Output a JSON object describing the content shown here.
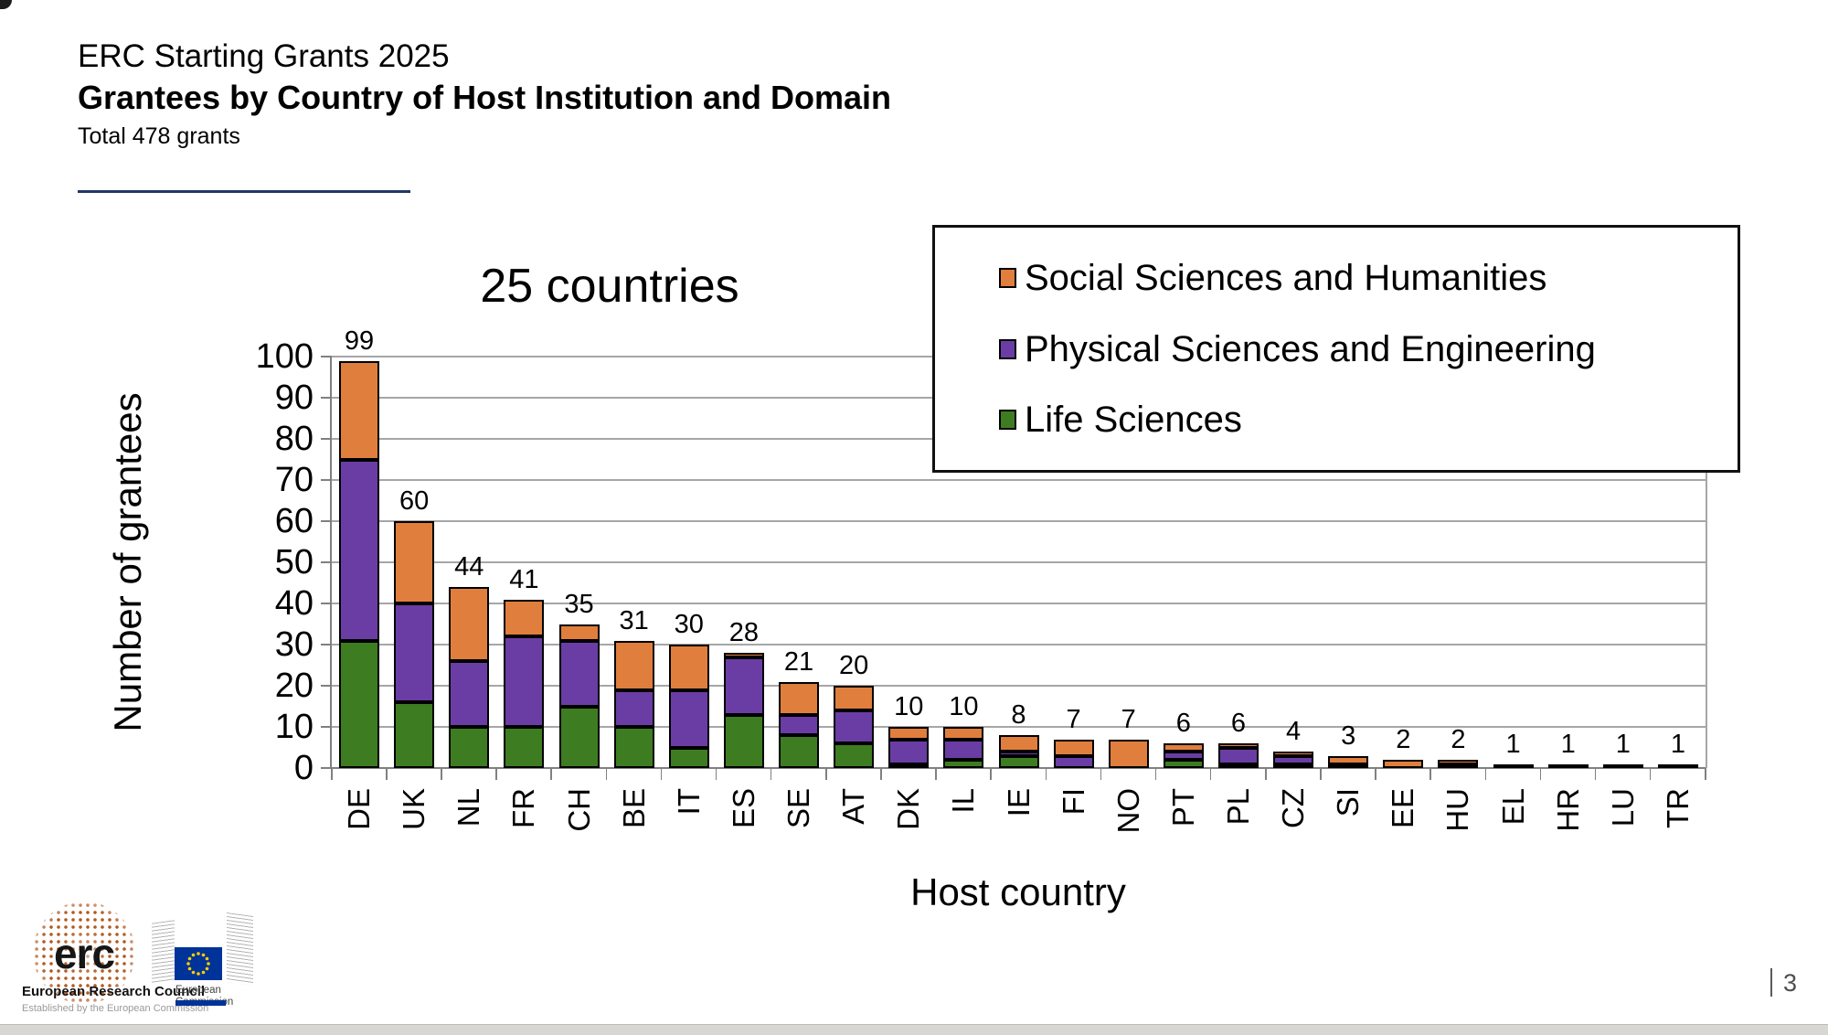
{
  "slide": {
    "title_line1": "ERC Starting Grants 2025",
    "title_line2": "Grantees by Country of Host Institution and Domain",
    "subtitle": "Total 478 grants",
    "page_number": "3"
  },
  "chart_data": {
    "type": "bar",
    "stacked": true,
    "title": "25 countries",
    "xlabel": "Host country",
    "ylabel": "Number of grantees",
    "ylim": [
      0,
      100
    ],
    "ytick_step": 10,
    "grid": true,
    "legend_position": "overlay-top-right",
    "categories": [
      "DE",
      "UK",
      "NL",
      "FR",
      "CH",
      "BE",
      "IT",
      "ES",
      "SE",
      "AT",
      "DK",
      "IL",
      "IE",
      "FI",
      "NO",
      "PT",
      "PL",
      "CZ",
      "SI",
      "EE",
      "HU",
      "EL",
      "HR",
      "LU",
      "TR"
    ],
    "totals": [
      99,
      60,
      44,
      41,
      35,
      31,
      30,
      28,
      21,
      20,
      10,
      10,
      8,
      7,
      7,
      6,
      6,
      4,
      3,
      2,
      2,
      1,
      1,
      1,
      1
    ],
    "series": [
      {
        "key": "life-sciences",
        "name": "Life Sciences",
        "color": "#3E7C22",
        "values": [
          31,
          16,
          10,
          10,
          15,
          10,
          5,
          13,
          8,
          6,
          1,
          2,
          3,
          0,
          0,
          2,
          1,
          1,
          0,
          0,
          0,
          0,
          1,
          1,
          0
        ]
      },
      {
        "key": "physical-sciences-engineering",
        "name": "Physical Sciences and Engineering",
        "color": "#6A3DA4",
        "values": [
          44,
          24,
          16,
          22,
          16,
          9,
          14,
          14,
          5,
          8,
          6,
          5,
          1,
          3,
          0,
          2,
          4,
          2,
          1,
          0,
          1,
          1,
          0,
          0,
          0
        ]
      },
      {
        "key": "social-sciences-humanities",
        "name": "Social Sciences and Humanities",
        "color": "#E07E3D",
        "values": [
          24,
          20,
          18,
          9,
          4,
          12,
          11,
          1,
          8,
          6,
          3,
          3,
          4,
          4,
          7,
          2,
          1,
          1,
          2,
          2,
          1,
          0,
          0,
          0,
          1
        ]
      }
    ],
    "legend": [
      {
        "label": "Social Sciences and Humanities",
        "color": "#E07E3D"
      },
      {
        "label": "Physical Sciences and Engineering",
        "color": "#6A3DA4"
      },
      {
        "label": "Life Sciences",
        "color": "#3E7C22"
      }
    ],
    "colors": {
      "gridline": "#A6A6A6",
      "axis": "#808080",
      "accent_underline": "#1F3864"
    }
  },
  "footer": {
    "erc_text": "erc",
    "erc_caption1": "European Research Council",
    "erc_caption2": "Established by the European Commission",
    "ec_caption_line1": "European",
    "ec_caption_line2": "Commission"
  }
}
